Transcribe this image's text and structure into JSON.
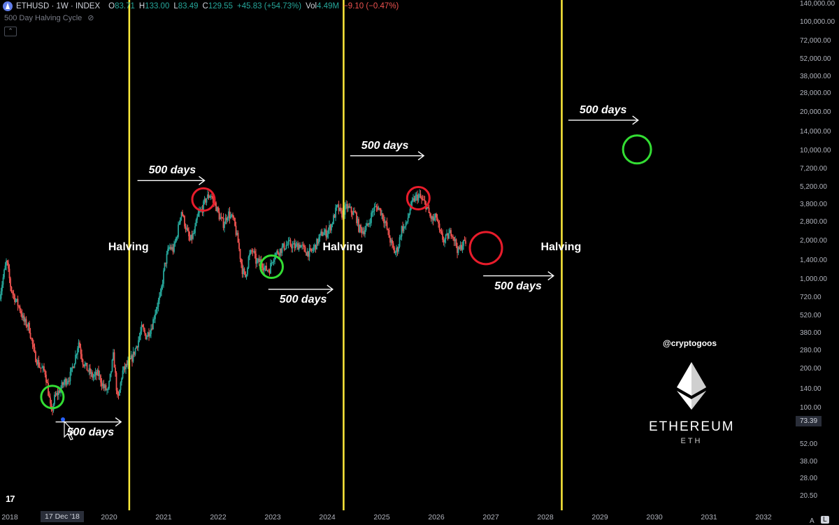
{
  "header": {
    "symbol": "ETHUSD · 1W · INDEX",
    "open_k": "O",
    "open": "83.71",
    "high_k": "H",
    "high": "133.00",
    "low_k": "L",
    "low": "83.49",
    "close_k": "C",
    "close": "129.55",
    "change": "+45.83 (+54.73%)",
    "vol_k": "Vol",
    "vol": "4.49M",
    "vol_change": "−9.10 (−0.47%)"
  },
  "indicator_label": "500 Day Halving Cycle",
  "collapse_glyph": "⌃",
  "handle": "@cryptogoos",
  "logo_text": "ETHEREUM",
  "logo_ticker": "ETH",
  "crosshair": {
    "date": "17 Dec '18",
    "price": "73.39"
  },
  "tv_logo": "17",
  "scale_buttons": {
    "auto": "A",
    "log": "L"
  },
  "colors": {
    "up": "#26a69a",
    "down": "#ef5350",
    "halving_line": "#ffeb3b",
    "green_circle": "#33dd33",
    "red_circle": "#e81c2b"
  },
  "chart_data": {
    "type": "candlestick",
    "y_scale": "log",
    "ylim": [
      16,
      150000
    ],
    "xlim": [
      2018.0,
      2032.55
    ],
    "yticks": [
      {
        "value": 140000,
        "label": "140,000.00"
      },
      {
        "value": 100000,
        "label": "100,000.00"
      },
      {
        "value": 72000,
        "label": "72,000.00"
      },
      {
        "value": 52000,
        "label": "52,000.00"
      },
      {
        "value": 38000,
        "label": "38,000.00"
      },
      {
        "value": 28000,
        "label": "28,000.00"
      },
      {
        "value": 20000,
        "label": "20,000.00"
      },
      {
        "value": 14000,
        "label": "14,000.00"
      },
      {
        "value": 10000,
        "label": "10,000.00"
      },
      {
        "value": 7200,
        "label": "7,200.00"
      },
      {
        "value": 5200,
        "label": "5,200.00"
      },
      {
        "value": 3800,
        "label": "3,800.00"
      },
      {
        "value": 2800,
        "label": "2,800.00"
      },
      {
        "value": 2000,
        "label": "2,000.00"
      },
      {
        "value": 1400,
        "label": "1,400.00"
      },
      {
        "value": 1000,
        "label": "1,000.00"
      },
      {
        "value": 720,
        "label": "720.00"
      },
      {
        "value": 520,
        "label": "520.00"
      },
      {
        "value": 380,
        "label": "380.00"
      },
      {
        "value": 280,
        "label": "280.00"
      },
      {
        "value": 200,
        "label": "200.00"
      },
      {
        "value": 140,
        "label": "140.00"
      },
      {
        "value": 100,
        "label": "100.00"
      },
      {
        "value": 52,
        "label": "52.00"
      },
      {
        "value": 38,
        "label": "38.00"
      },
      {
        "value": 28,
        "label": "28.00"
      },
      {
        "value": 20.5,
        "label": "20.50"
      }
    ],
    "xticks": [
      {
        "value": 2018.0,
        "label": "2018"
      },
      {
        "value": 2020.0,
        "label": "2020"
      },
      {
        "value": 2021.0,
        "label": "2021"
      },
      {
        "value": 2022.0,
        "label": "2022"
      },
      {
        "value": 2023.0,
        "label": "2023"
      },
      {
        "value": 2024.0,
        "label": "2024"
      },
      {
        "value": 2025.0,
        "label": "2025"
      },
      {
        "value": 2026.0,
        "label": "2026"
      },
      {
        "value": 2027.0,
        "label": "2027"
      },
      {
        "value": 2028.0,
        "label": "2028"
      },
      {
        "value": 2029.0,
        "label": "2029"
      },
      {
        "value": 2030.0,
        "label": "2030"
      },
      {
        "value": 2031.0,
        "label": "2031"
      },
      {
        "value": 2032.0,
        "label": "2032"
      }
    ],
    "price_path": [
      [
        2018.0,
        700
      ],
      [
        2018.08,
        1050
      ],
      [
        2018.14,
        1400
      ],
      [
        2018.22,
        850
      ],
      [
        2018.3,
        700
      ],
      [
        2018.38,
        600
      ],
      [
        2018.46,
        470
      ],
      [
        2018.55,
        430
      ],
      [
        2018.65,
        260
      ],
      [
        2018.75,
        210
      ],
      [
        2018.85,
        190
      ],
      [
        2018.92,
        120
      ],
      [
        2018.96,
        90
      ],
      [
        2019.02,
        120
      ],
      [
        2019.1,
        135
      ],
      [
        2019.2,
        160
      ],
      [
        2019.3,
        175
      ],
      [
        2019.4,
        250
      ],
      [
        2019.46,
        330
      ],
      [
        2019.54,
        230
      ],
      [
        2019.62,
        200
      ],
      [
        2019.72,
        175
      ],
      [
        2019.82,
        185
      ],
      [
        2019.92,
        145
      ],
      [
        2020.0,
        135
      ],
      [
        2020.1,
        260
      ],
      [
        2020.18,
        110
      ],
      [
        2020.26,
        190
      ],
      [
        2020.36,
        220
      ],
      [
        2020.44,
        245
      ],
      [
        2020.55,
        330
      ],
      [
        2020.62,
        420
      ],
      [
        2020.7,
        360
      ],
      [
        2020.8,
        430
      ],
      [
        2020.88,
        600
      ],
      [
        2020.96,
        740
      ],
      [
        2021.04,
        1300
      ],
      [
        2021.12,
        1800
      ],
      [
        2021.2,
        1700
      ],
      [
        2021.28,
        2400
      ],
      [
        2021.34,
        3500
      ],
      [
        2021.42,
        2600
      ],
      [
        2021.5,
        2000
      ],
      [
        2021.58,
        2300
      ],
      [
        2021.65,
        3200
      ],
      [
        2021.72,
        3500
      ],
      [
        2021.8,
        4300
      ],
      [
        2021.88,
        4600
      ],
      [
        2021.96,
        3900
      ],
      [
        2022.04,
        3100
      ],
      [
        2022.12,
        2700
      ],
      [
        2022.2,
        3300
      ],
      [
        2022.3,
        2900
      ],
      [
        2022.38,
        2000
      ],
      [
        2022.46,
        1200
      ],
      [
        2022.52,
        1050
      ],
      [
        2022.58,
        1500
      ],
      [
        2022.65,
        1700
      ],
      [
        2022.72,
        1350
      ],
      [
        2022.8,
        1400
      ],
      [
        2022.88,
        1200
      ],
      [
        2022.96,
        1200
      ],
      [
        2023.04,
        1550
      ],
      [
        2023.12,
        1650
      ],
      [
        2023.22,
        1800
      ],
      [
        2023.32,
        1900
      ],
      [
        2023.42,
        1800
      ],
      [
        2023.52,
        1880
      ],
      [
        2023.62,
        1650
      ],
      [
        2023.72,
        1620
      ],
      [
        2023.82,
        1900
      ],
      [
        2023.92,
        2300
      ],
      [
        2024.0,
        2300
      ],
      [
        2024.1,
        2700
      ],
      [
        2024.2,
        3700
      ],
      [
        2024.28,
        3200
      ],
      [
        2024.38,
        3700
      ],
      [
        2024.46,
        3400
      ],
      [
        2024.54,
        3200
      ],
      [
        2024.6,
        2500
      ],
      [
        2024.68,
        2400
      ],
      [
        2024.76,
        2600
      ],
      [
        2024.86,
        3500
      ],
      [
        2024.94,
        3700
      ],
      [
        2025.0,
        3400
      ],
      [
        2025.08,
        2800
      ],
      [
        2025.16,
        2100
      ],
      [
        2025.26,
        1600
      ],
      [
        2025.32,
        1800
      ],
      [
        2025.38,
        2500
      ],
      [
        2025.46,
        2600
      ],
      [
        2025.54,
        3600
      ],
      [
        2025.62,
        4300
      ],
      [
        2025.7,
        4500
      ],
      [
        2025.76,
        4100
      ],
      [
        2025.82,
        3900
      ],
      [
        2025.9,
        3100
      ],
      [
        2025.96,
        2900
      ],
      [
        2026.02,
        3100
      ],
      [
        2026.08,
        2300
      ],
      [
        2026.16,
        2000
      ],
      [
        2026.24,
        2200
      ],
      [
        2026.3,
        2400
      ],
      [
        2026.36,
        2000
      ],
      [
        2026.42,
        1650
      ],
      [
        2026.5,
        1900
      ],
      [
        2026.54,
        1950
      ]
    ],
    "halving_dates": [
      2020.37,
      2024.3,
      2028.3
    ],
    "halving_label": "Halving",
    "arrows": [
      {
        "x": [
          2019.02,
          2020.22
        ],
        "y": 78,
        "label": "500 days",
        "label_pos": "below"
      },
      {
        "x": [
          2020.52,
          2021.75
        ],
        "y": 5900,
        "label": "500 days",
        "label_pos": "above"
      },
      {
        "x": [
          2022.92,
          2024.1
        ],
        "y": 840,
        "label": "500 days",
        "label_pos": "below"
      },
      {
        "x": [
          2024.42,
          2025.77
        ],
        "y": 9200,
        "label": "500 days",
        "label_pos": "above"
      },
      {
        "x": [
          2026.86,
          2028.15
        ],
        "y": 1070,
        "label": "500 days",
        "label_pos": "below"
      },
      {
        "x": [
          2028.42,
          2029.7
        ],
        "y": 17400,
        "label": "500 days",
        "label_pos": "above"
      }
    ],
    "circles": [
      {
        "x": 2018.96,
        "y": 122,
        "color": "green",
        "size": "small"
      },
      {
        "x": 2021.73,
        "y": 4200,
        "color": "red",
        "size": "small"
      },
      {
        "x": 2022.98,
        "y": 1260,
        "color": "green",
        "size": "small"
      },
      {
        "x": 2025.67,
        "y": 4300,
        "color": "red",
        "size": "small"
      },
      {
        "x": 2026.91,
        "y": 1760,
        "color": "red",
        "size": "large"
      },
      {
        "x": 2029.68,
        "y": 10300,
        "color": "green",
        "size": "medium"
      }
    ]
  }
}
